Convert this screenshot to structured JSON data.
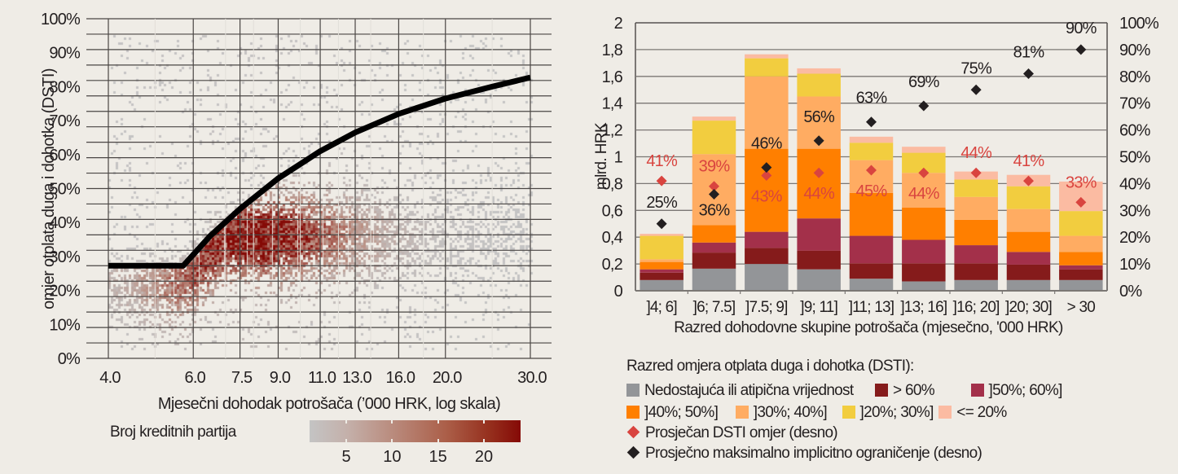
{
  "chart_data": [
    {
      "type": "heatmap",
      "title": "",
      "xlabel": "Mjesečni dohodak potrošača (’000 HRK, log skala)",
      "ylabel": "omjer otplata duga i dohotka (DSTI)",
      "x_scale": "log",
      "xlim": [
        4.0,
        30.0
      ],
      "x_ticks": [
        4.0,
        6.0,
        7.5,
        9.0,
        11.0,
        13.0,
        16.0,
        20.0,
        30.0
      ],
      "x_tick_labels": [
        "4.0",
        "6.0",
        "7.5",
        "9.0",
        "11.0",
        "13.0",
        "16.0",
        "20.0",
        "30.0"
      ],
      "ylim": [
        0,
        100
      ],
      "y_ticks": [
        0,
        10,
        20,
        30,
        40,
        50,
        60,
        70,
        80,
        90,
        100
      ],
      "y_tick_labels": [
        "0%",
        "10%",
        "20%",
        "30%",
        "40%",
        "50%",
        "60%",
        "70%",
        "80%",
        "90%",
        "100%"
      ],
      "grid": true,
      "colorbar": {
        "label": "Broj kreditnih partija",
        "ticks": [
          5,
          10,
          15,
          20
        ],
        "range": [
          1,
          24
        ],
        "colors": [
          "#c4c4c4",
          "#850a06"
        ]
      },
      "density_description": "Counts highest just below the limit curve around income 6.5–9 and DSTI 30–45%, spreading right and fading above the curve",
      "limit_curve": {
        "name": "Maksimalno implicitno ograničenje",
        "x": [
          4.0,
          5.72,
          6.5,
          7.5,
          9.0,
          11.0,
          13.0,
          16.0,
          20.0,
          25.0,
          30.0
        ],
        "y": [
          27.3,
          27.3,
          36,
          44,
          53,
          61,
          66.5,
          72,
          76.5,
          80,
          82.7
        ]
      }
    },
    {
      "type": "bar",
      "stacked": true,
      "title": "",
      "xlabel": "Razred dohodovne skupine potrošača (mjesečno, '000 HRK)",
      "ylabel": "mlrd. HRK",
      "categories": [
        "]4; 6]",
        "]6; 7.5]",
        "]7.5; 9]",
        "]9; 11]",
        "]11; 13]",
        "]13; 16]",
        "]16; 20]",
        "]20; 30]",
        "> 30"
      ],
      "ylim": [
        0,
        2
      ],
      "y_ticks": [
        0,
        0.2,
        0.4,
        0.6,
        0.8,
        1,
        1.2,
        1.4,
        1.6,
        1.8,
        2
      ],
      "y_tick_labels": [
        "0",
        "0,2",
        "0,4",
        "0,6",
        "0,8",
        "1",
        "1,2",
        "1,4",
        "1,6",
        "1,8",
        "2"
      ],
      "y2lim": [
        0,
        100
      ],
      "y2_ticks": [
        0,
        10,
        20,
        30,
        40,
        50,
        60,
        70,
        80,
        90,
        100
      ],
      "y2_tick_labels": [
        "0%",
        "10%",
        "20%",
        "30%",
        "40%",
        "50%",
        "60%",
        "70%",
        "80%",
        "90%",
        "100%"
      ],
      "grid": true,
      "legend_title": "Razred omjera otplata duga i dohotka (DSTI):",
      "legend_position": "bottom",
      "series": [
        {
          "name": "Nedostajuća ili atipična vrijednost",
          "color": "#939598",
          "values": [
            0.08,
            0.165,
            0.2,
            0.16,
            0.09,
            0.07,
            0.08,
            0.08,
            0.08
          ]
        },
        {
          "name": "> 60%",
          "color": "#851b1b",
          "values": [
            0.055,
            0.12,
            0.12,
            0.14,
            0.115,
            0.135,
            0.125,
            0.115,
            0.08
          ]
        },
        {
          "name": "]50%; 60%]",
          "color": "#a3304a",
          "values": [
            0.025,
            0.075,
            0.12,
            0.24,
            0.205,
            0.175,
            0.135,
            0.095,
            0.03
          ]
        },
        {
          "name": "]40%; 50%]",
          "color": "#ff7f00",
          "values": [
            0.055,
            0.13,
            0.62,
            0.52,
            0.32,
            0.24,
            0.19,
            0.15,
            0.1
          ]
        },
        {
          "name": "]30%; 40%]",
          "color": "#ffac62",
          "values": [
            0.02,
            0.53,
            0.54,
            0.39,
            0.245,
            0.26,
            0.17,
            0.17,
            0.12
          ]
        },
        {
          "name": "]20%; 30%]",
          "color": "#f2cd3f",
          "values": [
            0.175,
            0.25,
            0.135,
            0.17,
            0.13,
            0.15,
            0.13,
            0.17,
            0.185
          ]
        },
        {
          "name": "<= 20%",
          "color": "#fbbba2",
          "values": [
            0.015,
            0.03,
            0.03,
            0.04,
            0.045,
            0.045,
            0.06,
            0.085,
            0.22
          ]
        }
      ],
      "markers": [
        {
          "name": "Prosječan DSTI omjer (desno)",
          "color": "#d9443f",
          "axis": "right",
          "values": [
            41,
            39,
            43,
            44,
            45,
            44,
            44,
            41,
            33
          ],
          "labels": [
            "41%",
            "39%",
            "43%",
            "44%",
            "45%",
            "44%",
            "44%",
            "41%",
            "33%"
          ]
        },
        {
          "name": "Prosječno maksimalno implicitno ograničenje (desno)",
          "color": "#231f20",
          "axis": "right",
          "values": [
            25,
            36,
            46,
            56,
            63,
            69,
            75,
            81,
            90
          ],
          "labels": [
            "25%",
            "36%",
            "46%",
            "56%",
            "63%",
            "69%",
            "75%",
            "81%",
            "90%"
          ]
        }
      ]
    }
  ]
}
